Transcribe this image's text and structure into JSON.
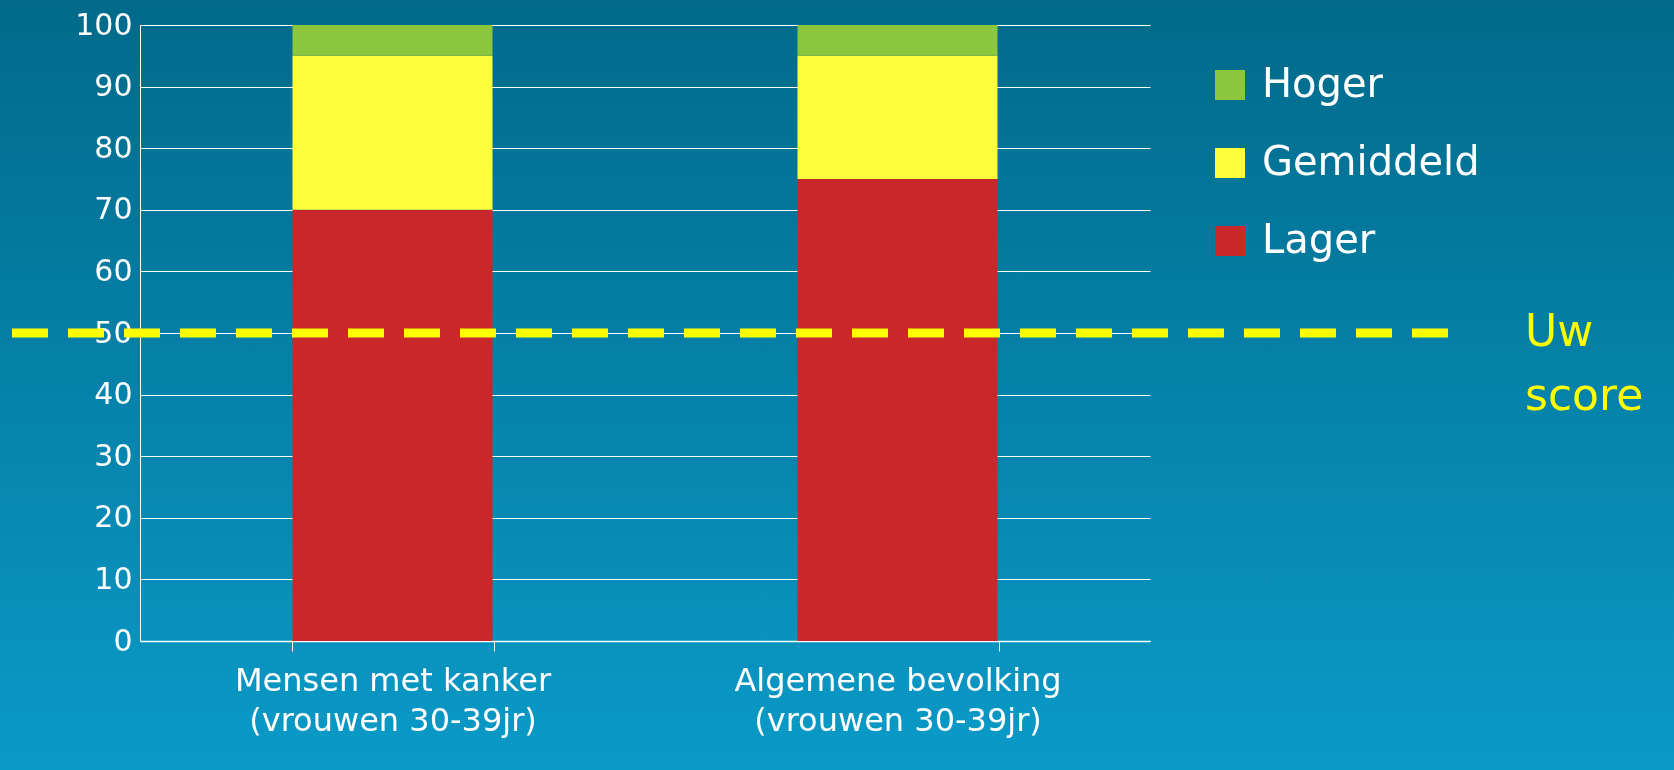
{
  "chart_data": {
    "type": "bar",
    "stacked": true,
    "categories": [
      "Mensen met kanker\n(vrouwen 30-39jr)",
      "Algemene bevolking\n(vrouwen 30-39jr)"
    ],
    "series": [
      {
        "name": "Lager",
        "color": "#c8282a",
        "values": [
          70,
          75
        ]
      },
      {
        "name": "Gemiddeld",
        "color": "#ffff3c",
        "values": [
          25,
          20
        ]
      },
      {
        "name": "Hoger",
        "color": "#8cc63e",
        "values": [
          5,
          5
        ]
      }
    ],
    "ylim": [
      0,
      100
    ],
    "yticks": [
      0,
      10,
      20,
      30,
      40,
      50,
      60,
      70,
      80,
      90,
      100
    ],
    "grid": "y",
    "legend": "right",
    "ref_lines": [
      {
        "axis": "y",
        "value": 50,
        "label": "Uw score",
        "color": "#ffff00",
        "line_style": "dashed"
      }
    ]
  }
}
